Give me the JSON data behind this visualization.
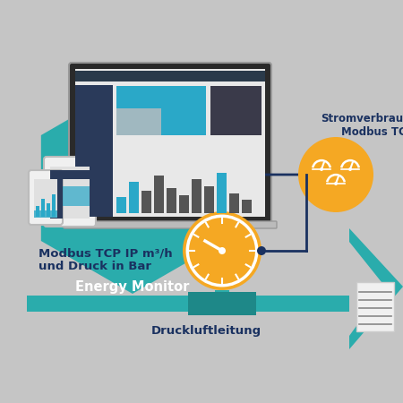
{
  "bg_color": "#c5c5c5",
  "teal": "#2aacac",
  "teal_dark": "#1e8888",
  "orange": "#f5a823",
  "dark_blue": "#1a3160",
  "white": "#ffffff",
  "arrow_color": "#1a3160",
  "figsize": [
    4.5,
    4.5
  ],
  "dpi": 100,
  "label_energy": "Energy Monitor",
  "label_modbus": "Modbus TCP IP m³/h\nund Druck in Bar",
  "label_druckluft": "Druckluftleitung",
  "label_strom1": "Stromverbrauchs-",
  "label_strom2": "Modbus TC"
}
